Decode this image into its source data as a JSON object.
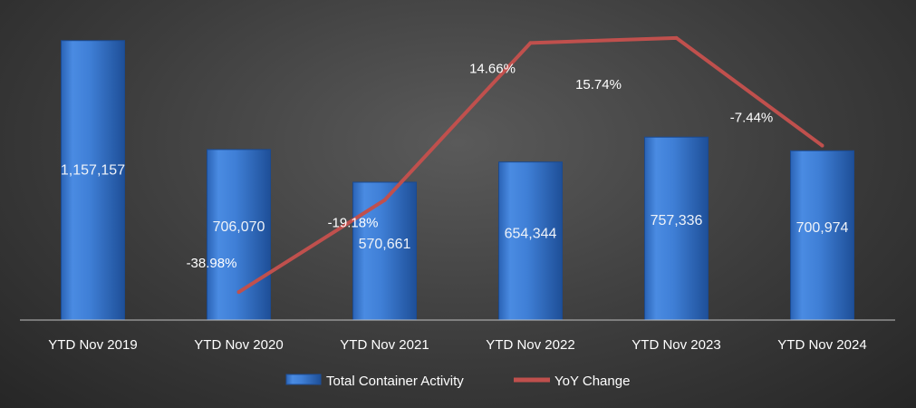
{
  "chart_data": {
    "type": "bar",
    "categories": [
      "YTD Nov 2019",
      "YTD Nov 2020",
      "YTD Nov 2021",
      "YTD Nov 2022",
      "YTD Nov 2023",
      "YTD Nov 2024"
    ],
    "series": [
      {
        "name": "Total Container Activity",
        "type": "bar",
        "axis": "left",
        "values": [
          1157157,
          706070,
          570661,
          654344,
          757336,
          700974
        ],
        "labels": [
          "1,157,157",
          "706,070",
          "570,661",
          "654,344",
          "757,336",
          "700,974"
        ],
        "color": "#3f7fd6"
      },
      {
        "name": "YoY Change",
        "type": "line",
        "axis": "right",
        "values": [
          null,
          -38.98,
          -19.18,
          14.66,
          15.74,
          -7.44
        ],
        "labels": [
          "",
          "-38.98%",
          "-19.18%",
          "14.66%",
          "15.74%",
          "-7.44%"
        ],
        "color": "#c0504d"
      }
    ],
    "ylim_left": [
      0,
      1250000
    ],
    "ylim_right": [
      -45,
      20
    ],
    "legend_position": "bottom",
    "grid": false,
    "title": "",
    "xlabel": "",
    "ylabel": ""
  }
}
